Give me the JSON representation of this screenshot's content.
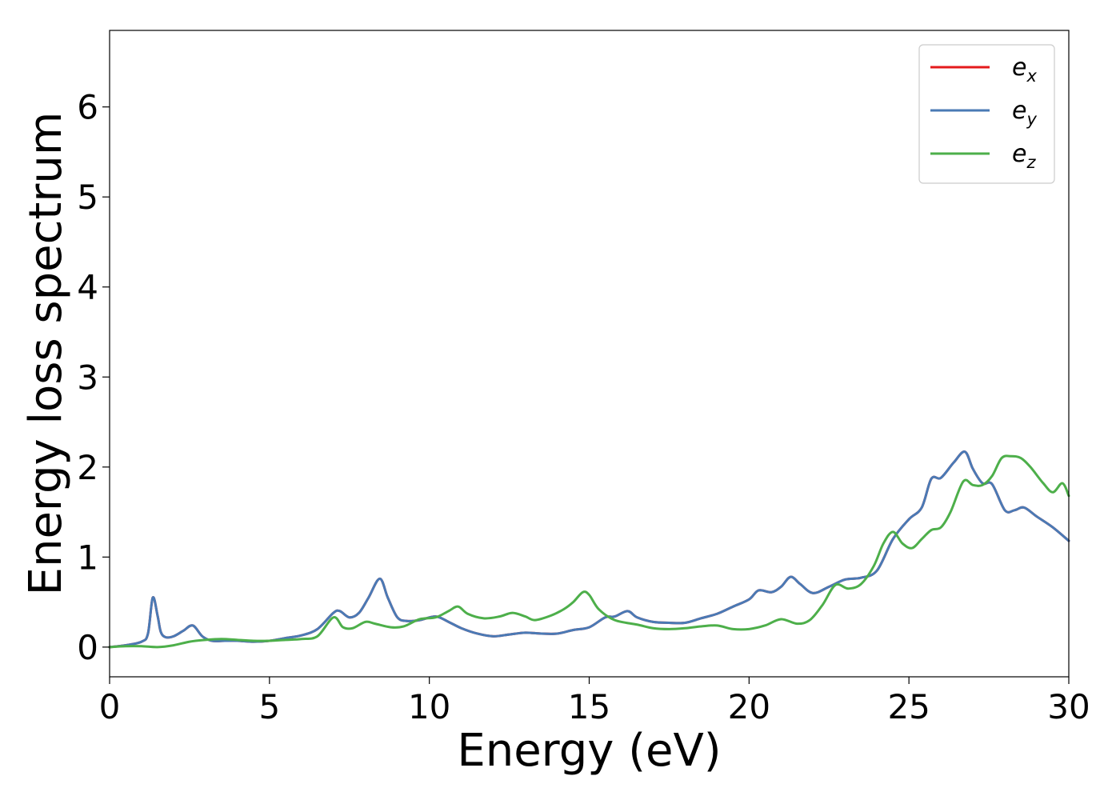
{
  "chart_data": {
    "type": "line",
    "title": "",
    "xlabel": "Energy (eV)",
    "ylabel": "Energy loss spectrum",
    "xlim": [
      0,
      30
    ],
    "ylim": [
      -0.33,
      6.85
    ],
    "xticks": [
      0,
      5,
      10,
      15,
      20,
      25,
      30
    ],
    "yticks": [
      0,
      1,
      2,
      3,
      4,
      5,
      6
    ],
    "xtick_labels": [
      "0",
      "5",
      "10",
      "15",
      "20",
      "25",
      "30"
    ],
    "ytick_labels": [
      "0",
      "1",
      "2",
      "3",
      "4",
      "5",
      "6"
    ],
    "grid": false,
    "legend_position": "top-right",
    "series": [
      {
        "name": "e_x",
        "legend_base": "e",
        "legend_sub": "x",
        "color": "#e41a1c",
        "x": [
          0,
          0.5,
          1.0,
          1.2,
          1.35,
          1.5,
          1.6,
          1.75,
          2.0,
          2.3,
          2.6,
          2.9,
          3.2,
          3.6,
          4.0,
          4.5,
          5.0,
          5.5,
          6.0,
          6.5,
          7.0,
          7.2,
          7.5,
          7.8,
          8.1,
          8.45,
          8.7,
          9.0,
          9.3,
          9.7,
          10.2,
          10.6,
          11.0,
          11.5,
          12.0,
          12.5,
          13.0,
          13.5,
          14.0,
          14.5,
          15.0,
          15.5,
          15.8,
          16.2,
          16.5,
          17.0,
          17.5,
          18.0,
          18.5,
          19.0,
          19.5,
          20.0,
          20.3,
          20.7,
          21.0,
          21.3,
          21.6,
          22.0,
          22.5,
          23.0,
          23.5,
          24.0,
          24.5,
          25.0,
          25.4,
          25.7,
          26.0,
          26.4,
          26.75,
          27.0,
          27.3,
          27.6,
          28.0,
          28.3,
          28.6,
          29.0,
          29.5,
          30.0
        ],
        "y": [
          0.0,
          0.02,
          0.06,
          0.15,
          0.55,
          0.35,
          0.17,
          0.11,
          0.12,
          0.18,
          0.24,
          0.12,
          0.07,
          0.07,
          0.07,
          0.06,
          0.07,
          0.1,
          0.13,
          0.2,
          0.38,
          0.4,
          0.33,
          0.38,
          0.55,
          0.76,
          0.55,
          0.33,
          0.29,
          0.3,
          0.34,
          0.28,
          0.21,
          0.15,
          0.12,
          0.14,
          0.16,
          0.15,
          0.15,
          0.19,
          0.22,
          0.33,
          0.34,
          0.4,
          0.33,
          0.28,
          0.27,
          0.27,
          0.32,
          0.37,
          0.45,
          0.53,
          0.63,
          0.61,
          0.67,
          0.78,
          0.7,
          0.6,
          0.67,
          0.75,
          0.77,
          0.85,
          1.2,
          1.42,
          1.55,
          1.87,
          1.88,
          2.05,
          2.17,
          1.98,
          1.82,
          1.81,
          1.52,
          1.52,
          1.55,
          1.45,
          1.33,
          1.18
        ]
      },
      {
        "name": "e_y",
        "legend_base": "e",
        "legend_sub": "y",
        "color": "#4a7ab5",
        "x": [
          0,
          0.5,
          1.0,
          1.2,
          1.35,
          1.5,
          1.6,
          1.75,
          2.0,
          2.3,
          2.6,
          2.9,
          3.2,
          3.6,
          4.0,
          4.5,
          5.0,
          5.5,
          6.0,
          6.5,
          7.0,
          7.2,
          7.5,
          7.8,
          8.1,
          8.45,
          8.7,
          9.0,
          9.3,
          9.7,
          10.2,
          10.6,
          11.0,
          11.5,
          12.0,
          12.5,
          13.0,
          13.5,
          14.0,
          14.5,
          15.0,
          15.5,
          15.8,
          16.2,
          16.5,
          17.0,
          17.5,
          18.0,
          18.5,
          19.0,
          19.5,
          20.0,
          20.3,
          20.7,
          21.0,
          21.3,
          21.6,
          22.0,
          22.5,
          23.0,
          23.5,
          24.0,
          24.5,
          25.0,
          25.4,
          25.7,
          26.0,
          26.4,
          26.75,
          27.0,
          27.3,
          27.6,
          28.0,
          28.3,
          28.6,
          29.0,
          29.5,
          30.0
        ],
        "y": [
          0.0,
          0.02,
          0.06,
          0.15,
          0.55,
          0.35,
          0.17,
          0.11,
          0.12,
          0.18,
          0.24,
          0.12,
          0.07,
          0.07,
          0.07,
          0.06,
          0.07,
          0.1,
          0.13,
          0.2,
          0.38,
          0.4,
          0.33,
          0.38,
          0.55,
          0.76,
          0.55,
          0.33,
          0.29,
          0.3,
          0.34,
          0.28,
          0.21,
          0.15,
          0.12,
          0.14,
          0.16,
          0.15,
          0.15,
          0.19,
          0.22,
          0.33,
          0.34,
          0.4,
          0.33,
          0.28,
          0.27,
          0.27,
          0.32,
          0.37,
          0.45,
          0.53,
          0.63,
          0.61,
          0.67,
          0.78,
          0.7,
          0.6,
          0.67,
          0.75,
          0.77,
          0.85,
          1.2,
          1.42,
          1.55,
          1.87,
          1.88,
          2.05,
          2.17,
          1.98,
          1.82,
          1.81,
          1.52,
          1.52,
          1.55,
          1.45,
          1.33,
          1.18
        ]
      },
      {
        "name": "e_z",
        "legend_base": "e",
        "legend_sub": "z",
        "color": "#4daf4a",
        "x": [
          0,
          0.5,
          1.0,
          1.5,
          2.0,
          2.5,
          3.0,
          3.5,
          4.0,
          4.5,
          5.0,
          5.5,
          6.0,
          6.5,
          7.0,
          7.3,
          7.6,
          8.0,
          8.3,
          8.8,
          9.2,
          9.7,
          10.2,
          10.6,
          10.9,
          11.2,
          11.7,
          12.2,
          12.6,
          13.0,
          13.3,
          13.8,
          14.2,
          14.5,
          14.8,
          15.0,
          15.3,
          15.8,
          16.5,
          17.0,
          17.5,
          18.0,
          18.5,
          19.0,
          19.5,
          20.0,
          20.5,
          21.0,
          21.5,
          21.9,
          22.3,
          22.7,
          23.1,
          23.5,
          23.9,
          24.2,
          24.5,
          24.8,
          25.1,
          25.4,
          25.7,
          26.0,
          26.3,
          26.7,
          27.0,
          27.3,
          27.6,
          27.9,
          28.2,
          28.5,
          28.8,
          29.2,
          29.5,
          29.8,
          30.0
        ],
        "y": [
          0.0,
          0.01,
          0.01,
          0.0,
          0.02,
          0.06,
          0.08,
          0.09,
          0.08,
          0.07,
          0.07,
          0.08,
          0.09,
          0.12,
          0.33,
          0.22,
          0.21,
          0.28,
          0.26,
          0.22,
          0.23,
          0.31,
          0.33,
          0.4,
          0.45,
          0.37,
          0.32,
          0.34,
          0.38,
          0.34,
          0.3,
          0.35,
          0.42,
          0.5,
          0.61,
          0.58,
          0.42,
          0.3,
          0.25,
          0.21,
          0.2,
          0.21,
          0.23,
          0.24,
          0.2,
          0.2,
          0.24,
          0.31,
          0.26,
          0.3,
          0.47,
          0.69,
          0.65,
          0.7,
          0.9,
          1.15,
          1.28,
          1.15,
          1.1,
          1.2,
          1.3,
          1.33,
          1.5,
          1.84,
          1.8,
          1.8,
          1.9,
          2.1,
          2.12,
          2.1,
          2.0,
          1.82,
          1.72,
          1.82,
          1.68
        ]
      }
    ]
  }
}
